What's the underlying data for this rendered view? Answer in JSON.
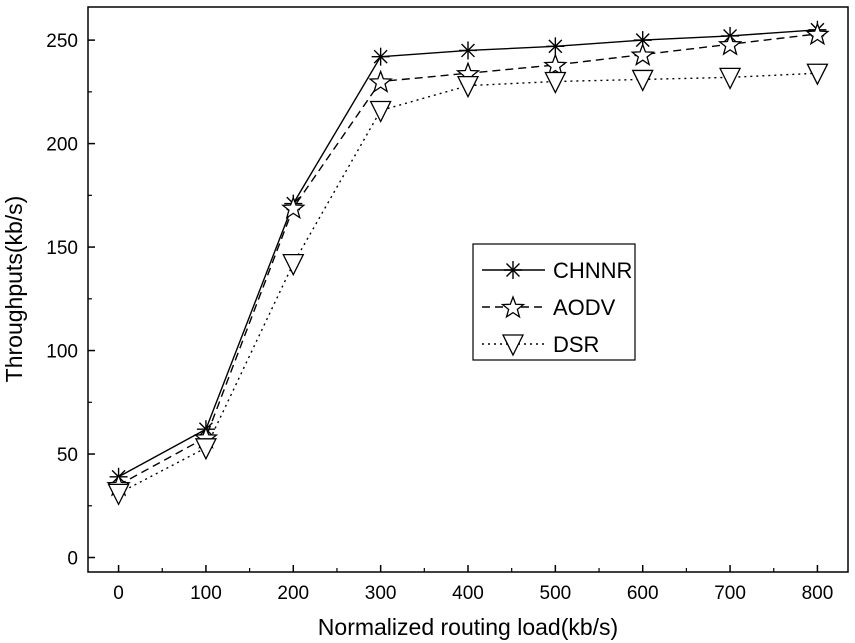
{
  "chart_data": {
    "type": "line",
    "title": "",
    "xlabel": "Normalized routing load(kb/s)",
    "ylabel": "Throughputs(kb/s)",
    "x": [
      0,
      100,
      200,
      300,
      400,
      500,
      600,
      700,
      800
    ],
    "xlim": [
      -35,
      835
    ],
    "ylim": [
      -7,
      266
    ],
    "xticks": [
      0,
      100,
      200,
      300,
      400,
      500,
      600,
      700,
      800
    ],
    "yticks": [
      0,
      50,
      100,
      150,
      200,
      250
    ],
    "grid": false,
    "legend_position": "center-right",
    "series": [
      {
        "name": "CHNNR",
        "marker": "asterisk",
        "line": "solid",
        "values": [
          39,
          62,
          171,
          242,
          245,
          247,
          250,
          252,
          255
        ]
      },
      {
        "name": "AODV",
        "marker": "star",
        "line": "dashed",
        "values": [
          35,
          58,
          169,
          230,
          234,
          238,
          243,
          248,
          253
        ]
      },
      {
        "name": "DSR",
        "marker": "triangle-down",
        "line": "dotted",
        "values": [
          31,
          53,
          142,
          216,
          228,
          230,
          231,
          232,
          234
        ]
      }
    ]
  }
}
